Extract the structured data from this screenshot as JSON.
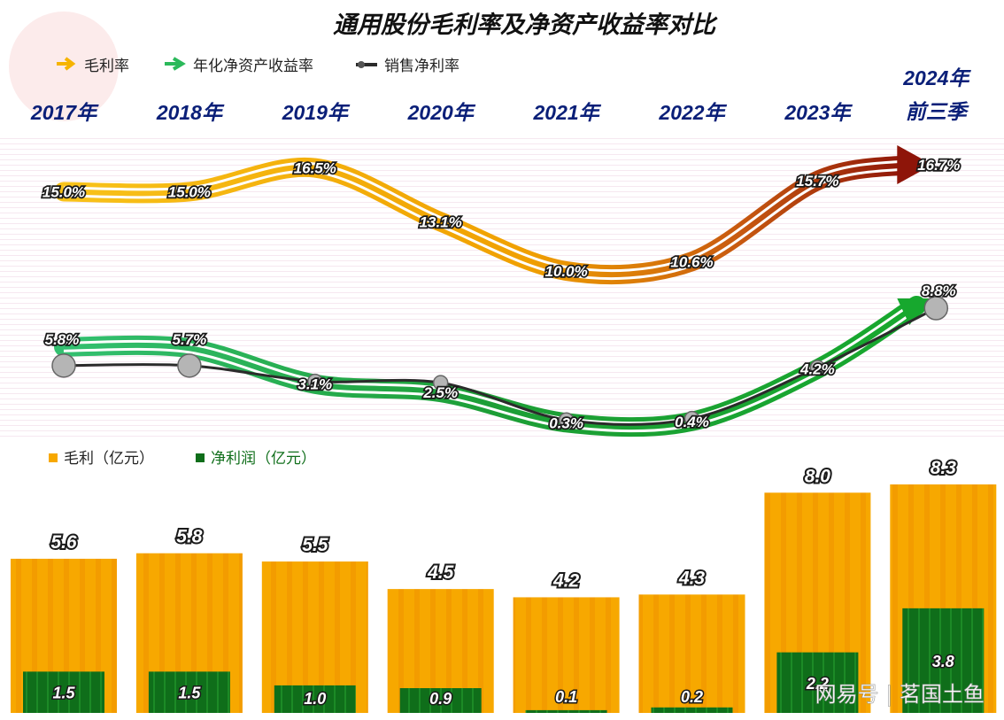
{
  "chart_data": {
    "type": "line",
    "title": "通用股份毛利率及净资产收益率对比",
    "categories": [
      "2017年",
      "2018年",
      "2019年",
      "2020年",
      "2021年",
      "2022年",
      "2023年",
      "2024年前三季"
    ],
    "category_lines": [
      [
        "2017年"
      ],
      [
        "2018年"
      ],
      [
        "2019年"
      ],
      [
        "2020年"
      ],
      [
        "2021年"
      ],
      [
        "2022年"
      ],
      [
        "2023年"
      ],
      [
        "2024年",
        "前三季"
      ]
    ],
    "line_legend": [
      "毛利率",
      "年化净资产收益率",
      "销售净利率"
    ],
    "series": [
      {
        "name": "毛利率",
        "unit": "%",
        "values": [
          15.0,
          15.0,
          16.5,
          13.1,
          10.0,
          10.6,
          15.7,
          16.7
        ],
        "labels": [
          "15.0%",
          "15.0%",
          "16.5%",
          "13.1%",
          "10.0%",
          "10.6%",
          "15.7%",
          "16.7%"
        ]
      },
      {
        "name": "年化净资产收益率",
        "unit": "%",
        "values": [
          5.8,
          5.7,
          3.1,
          2.5,
          0.3,
          0.4,
          4.2,
          8.8
        ],
        "labels": [
          "5.8%",
          "5.7%",
          "3.1%",
          "2.5%",
          "0.3%",
          "0.4%",
          "4.2%",
          "8.8%"
        ]
      },
      {
        "name": "销售净利率",
        "unit": "%",
        "values": [
          5.6,
          5.6,
          3.3,
          3.2,
          0.5,
          0.6,
          4.3,
          8.8
        ]
      }
    ],
    "bar_legend": [
      "毛利（亿元）",
      "净利润（亿元）"
    ],
    "bar_series": [
      {
        "name": "毛利（亿元）",
        "values": [
          5.6,
          5.8,
          5.5,
          4.5,
          4.2,
          4.3,
          8.0,
          8.3
        ],
        "labels": [
          "5.6",
          "5.8",
          "5.5",
          "4.5",
          "4.2",
          "4.3",
          "8.0",
          "8.3"
        ]
      },
      {
        "name": "净利润（亿元）",
        "values": [
          1.5,
          1.5,
          1.0,
          0.9,
          0.1,
          0.2,
          2.2,
          3.8
        ],
        "labels": [
          "1.5",
          "1.5",
          "1.0",
          "0.9",
          "0.1",
          "0.2",
          "2.2",
          "3.8"
        ]
      }
    ],
    "colors": {
      "gross_margin_start": "#f6b400",
      "gross_margin_end": "#9e1a0a",
      "roe": "#1fa63a",
      "net_margin": "#2b2b2b",
      "gross_profit_bar": "#f7a800",
      "net_profit_bar": "#0f6e1a",
      "title": "#111111",
      "year_label": "#0a1f78"
    }
  },
  "watermark": "网易号 | 茗国土鱼"
}
